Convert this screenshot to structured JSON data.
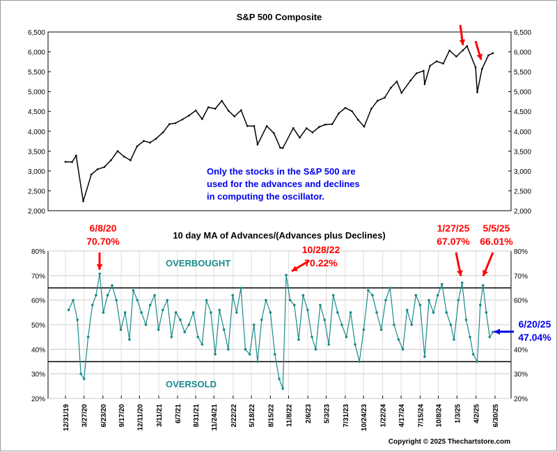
{
  "chart_data": [
    {
      "type": "line",
      "title": "S&P 500 Composite",
      "ylim": [
        2000,
        6500
      ],
      "yticks": [
        "2,000",
        "2,500",
        "3,000",
        "3,500",
        "4,000",
        "4,500",
        "5,000",
        "5,500",
        "6,000",
        "6,500"
      ],
      "ytick_values": [
        2000,
        2500,
        3000,
        3500,
        4000,
        4500,
        5000,
        5500,
        6000,
        6500
      ],
      "grid": false,
      "annotation": "Only the stocks in the S&P 500 are used for the advances and declines in computing the oscillator.",
      "annotation_lines": [
        "Only the stocks in the S&P 500 are",
        "used for the advances and declines",
        "in computing the oscillator."
      ],
      "x": [
        "2019-12-31",
        "2020-01-31",
        "2020-02-19",
        "2020-03-23",
        "2020-04-30",
        "2020-05-29",
        "2020-06-30",
        "2020-07-31",
        "2020-08-31",
        "2020-09-30",
        "2020-10-30",
        "2020-11-30",
        "2020-12-31",
        "2021-01-29",
        "2021-02-26",
        "2021-03-31",
        "2021-04-30",
        "2021-05-28",
        "2021-06-30",
        "2021-07-30",
        "2021-08-31",
        "2021-09-30",
        "2021-10-29",
        "2021-11-30",
        "2021-12-31",
        "2022-01-31",
        "2022-02-28",
        "2022-03-31",
        "2022-04-29",
        "2022-05-31",
        "2022-06-16",
        "2022-07-29",
        "2022-08-31",
        "2022-09-30",
        "2022-10-12",
        "2022-11-30",
        "2022-12-30",
        "2023-01-31",
        "2023-02-28",
        "2023-03-31",
        "2023-04-28",
        "2023-05-31",
        "2023-06-30",
        "2023-07-31",
        "2023-08-31",
        "2023-09-29",
        "2023-10-27",
        "2023-11-30",
        "2023-12-29",
        "2024-01-31",
        "2024-02-29",
        "2024-03-28",
        "2024-04-19",
        "2024-05-31",
        "2024-06-28",
        "2024-07-31",
        "2024-08-05",
        "2024-08-30",
        "2024-09-30",
        "2024-10-31",
        "2024-11-29",
        "2024-12-31",
        "2025-01-31",
        "2025-02-19",
        "2025-03-31",
        "2025-04-08",
        "2025-04-30",
        "2025-05-30",
        "2025-06-20"
      ],
      "values": [
        3231,
        3226,
        3386,
        2237,
        2912,
        3044,
        3100,
        3271,
        3500,
        3363,
        3270,
        3622,
        3756,
        3714,
        3811,
        3973,
        4181,
        4204,
        4298,
        4395,
        4523,
        4308,
        4605,
        4567,
        4766,
        4516,
        4374,
        4530,
        4132,
        4132,
        3667,
        4130,
        3955,
        3586,
        3577,
        4080,
        3840,
        4077,
        3970,
        4109,
        4169,
        4180,
        4450,
        4589,
        4508,
        4288,
        4117,
        4568,
        4770,
        4846,
        5096,
        5254,
        4967,
        5278,
        5460,
        5522,
        5186,
        5648,
        5762,
        5705,
        6032,
        5882,
        6040,
        6144,
        5612,
        4982,
        5569,
        5912,
        5967
      ],
      "markers": [
        "2025-02-19",
        "2025-04-01"
      ]
    },
    {
      "type": "line",
      "title": "10 day MA of Advances/(Advances plus Declines)",
      "ylim": [
        20,
        80
      ],
      "yticks": [
        "20%",
        "30%",
        "40%",
        "50%",
        "60%",
        "70%",
        "80%"
      ],
      "ytick_values": [
        20,
        30,
        40,
        50,
        60,
        70,
        80
      ],
      "grid": true,
      "hlines": [
        65,
        35
      ],
      "zone_labels": {
        "overbought": "OVERBOUGHT",
        "oversold": "OVERSOLD"
      },
      "xtick_labels": [
        "12/31/19",
        "3/27/20",
        "6/23/20",
        "9/17/20",
        "12/11/20",
        "3/11/21",
        "6/7/21",
        "8/31/21",
        "11/24/21",
        "2/22/22",
        "5/18/22",
        "8/15/22",
        "11/8/22",
        "2/6/23",
        "5/3/23",
        "7/31/23",
        "10/24/23",
        "1/22/24",
        "4/17/24",
        "7/15/24",
        "10/8/24",
        "1/3/25",
        "4/2/25",
        "6/30/25"
      ],
      "xtick_dates": [
        "2019-12-31",
        "2020-03-27",
        "2020-06-23",
        "2020-09-17",
        "2020-12-11",
        "2021-03-11",
        "2021-06-07",
        "2021-08-31",
        "2021-11-24",
        "2022-02-22",
        "2022-05-18",
        "2022-08-15",
        "2022-11-08",
        "2023-02-06",
        "2023-05-03",
        "2023-07-31",
        "2023-10-24",
        "2024-01-22",
        "2024-04-17",
        "2024-07-15",
        "2024-10-08",
        "2025-01-03",
        "2025-04-02",
        "2025-06-30"
      ],
      "x": [
        "2020-01-15",
        "2020-02-05",
        "2020-02-25",
        "2020-03-12",
        "2020-03-27",
        "2020-04-15",
        "2020-05-05",
        "2020-05-22",
        "2020-06-08",
        "2020-06-25",
        "2020-07-15",
        "2020-08-05",
        "2020-08-25",
        "2020-09-15",
        "2020-10-05",
        "2020-10-25",
        "2020-11-12",
        "2020-12-01",
        "2020-12-20",
        "2021-01-10",
        "2021-01-30",
        "2021-02-20",
        "2021-03-10",
        "2021-03-30",
        "2021-04-20",
        "2021-05-10",
        "2021-05-30",
        "2021-06-20",
        "2021-07-10",
        "2021-07-30",
        "2021-08-20",
        "2021-09-10",
        "2021-09-30",
        "2021-10-20",
        "2021-11-10",
        "2021-11-30",
        "2021-12-20",
        "2022-01-10",
        "2022-01-30",
        "2022-02-20",
        "2022-03-10",
        "2022-03-30",
        "2022-04-20",
        "2022-05-10",
        "2022-05-30",
        "2022-06-16",
        "2022-07-05",
        "2022-07-25",
        "2022-08-15",
        "2022-09-05",
        "2022-09-25",
        "2022-10-12",
        "2022-10-28",
        "2022-11-15",
        "2022-12-05",
        "2022-12-25",
        "2023-01-15",
        "2023-02-05",
        "2023-02-25",
        "2023-03-15",
        "2023-04-05",
        "2023-04-25",
        "2023-05-15",
        "2023-06-05",
        "2023-06-25",
        "2023-07-15",
        "2023-08-05",
        "2023-08-25",
        "2023-09-15",
        "2023-10-05",
        "2023-10-25",
        "2023-11-15",
        "2023-12-05",
        "2023-12-25",
        "2024-01-15",
        "2024-02-05",
        "2024-02-25",
        "2024-03-15",
        "2024-04-05",
        "2024-04-25",
        "2024-05-15",
        "2024-06-05",
        "2024-06-25",
        "2024-07-15",
        "2024-08-05",
        "2024-08-25",
        "2024-09-15",
        "2024-10-05",
        "2024-10-25",
        "2024-11-15",
        "2024-12-05",
        "2024-12-20",
        "2025-01-10",
        "2025-01-27",
        "2025-02-15",
        "2025-03-05",
        "2025-03-20",
        "2025-04-08",
        "2025-04-22",
        "2025-05-05",
        "2025-05-20",
        "2025-06-05",
        "2025-06-20"
      ],
      "values": [
        56,
        60,
        52,
        30,
        28,
        45,
        58,
        62,
        70.7,
        55,
        62,
        66,
        60,
        48,
        55,
        44,
        64,
        60,
        55,
        50,
        58,
        62,
        48,
        56,
        60,
        45,
        55,
        52,
        47,
        50,
        55,
        45,
        42,
        60,
        55,
        38,
        56,
        48,
        40,
        62,
        55,
        65,
        40,
        38,
        50,
        35,
        52,
        60,
        55,
        38,
        28,
        24,
        70.22,
        60,
        58,
        44,
        62,
        56,
        45,
        40,
        58,
        52,
        42,
        62,
        55,
        50,
        45,
        55,
        42,
        35,
        48,
        64,
        62,
        55,
        48,
        60,
        65,
        50,
        44,
        40,
        56,
        50,
        62,
        58,
        37,
        60,
        55,
        62,
        66.5,
        55,
        50,
        44,
        60,
        67.07,
        52,
        45,
        38,
        35,
        58,
        66.01,
        55,
        45,
        47.04
      ],
      "callouts": [
        {
          "date": "6/8/20",
          "value": "70.70%"
        },
        {
          "date": "10/28/22",
          "value": "70.22%"
        },
        {
          "date": "1/27/25",
          "value": "67.07%"
        },
        {
          "date": "5/5/25",
          "value": "66.01%"
        },
        {
          "date": "6/20/25",
          "value": "47.04%"
        }
      ]
    }
  ],
  "colors": {
    "price": "#000000",
    "oscillator": "#1a8a8a",
    "callout": "#ff0000",
    "latest": "#0000ee",
    "annotation": "#0000ee"
  },
  "copyright": "Copyright © 2025 Thechartstore.com"
}
